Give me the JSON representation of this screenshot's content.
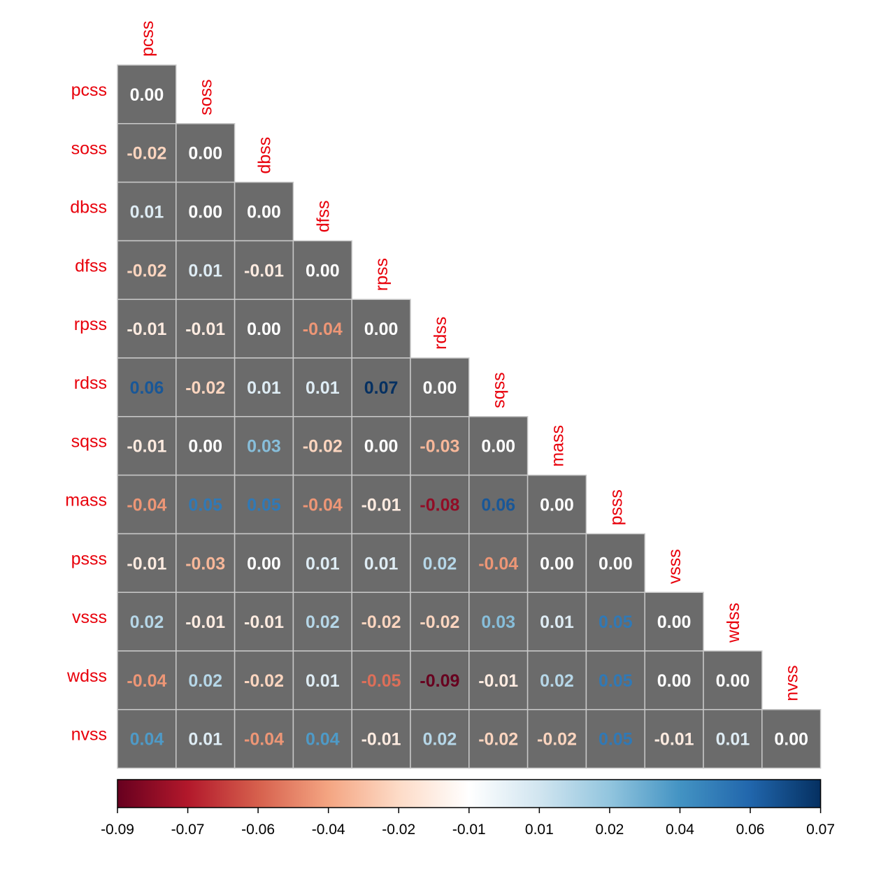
{
  "chart_data": {
    "type": "heatmap",
    "layout": "lower-triangle",
    "labels": [
      "pcss",
      "soss",
      "dbss",
      "dfss",
      "rpss",
      "rdss",
      "sqss",
      "mass",
      "psss",
      "vsss",
      "wdss",
      "nvss"
    ],
    "matrix": [
      [
        0.0
      ],
      [
        -0.02,
        0.0
      ],
      [
        0.01,
        0.0,
        0.0
      ],
      [
        -0.02,
        0.01,
        -0.01,
        0.0
      ],
      [
        -0.01,
        -0.01,
        0.0,
        -0.04,
        0.0
      ],
      [
        0.06,
        -0.02,
        0.01,
        0.01,
        0.07,
        0.0
      ],
      [
        -0.01,
        0.0,
        0.03,
        -0.02,
        0.0,
        -0.03,
        0.0
      ],
      [
        -0.04,
        0.05,
        0.05,
        -0.04,
        -0.01,
        -0.08,
        0.06,
        0.0
      ],
      [
        -0.01,
        -0.03,
        0.0,
        0.01,
        0.01,
        0.02,
        -0.04,
        0.0,
        0.0
      ],
      [
        0.02,
        -0.01,
        -0.01,
        0.02,
        -0.02,
        -0.02,
        0.03,
        0.01,
        0.05,
        0.0
      ],
      [
        -0.04,
        0.02,
        -0.02,
        0.01,
        -0.05,
        -0.09,
        -0.01,
        0.02,
        0.05,
        0.0,
        0.0
      ],
      [
        0.04,
        0.01,
        -0.04,
        0.04,
        -0.01,
        0.02,
        -0.02,
        -0.02,
        0.05,
        -0.01,
        0.01,
        0.0
      ]
    ],
    "color_range": [
      -0.09,
      0.07
    ],
    "colorbar_ticks": [
      "-0.09",
      "-0.07",
      "-0.06",
      "-0.04",
      "-0.02",
      "-0.01",
      "0.01",
      "0.02",
      "0.04",
      "0.06",
      "0.07"
    ],
    "colors": {
      "cell_fill": "#6b6b6b",
      "cell_border": "#c8c8c8",
      "label_color": "#e8000b",
      "palette": [
        "#67001f",
        "#b2182b",
        "#d6604d",
        "#f4a582",
        "#fddbc7",
        "#ffffff",
        "#d1e5f0",
        "#92c5de",
        "#4393c3",
        "#2166ac",
        "#053061"
      ]
    }
  }
}
